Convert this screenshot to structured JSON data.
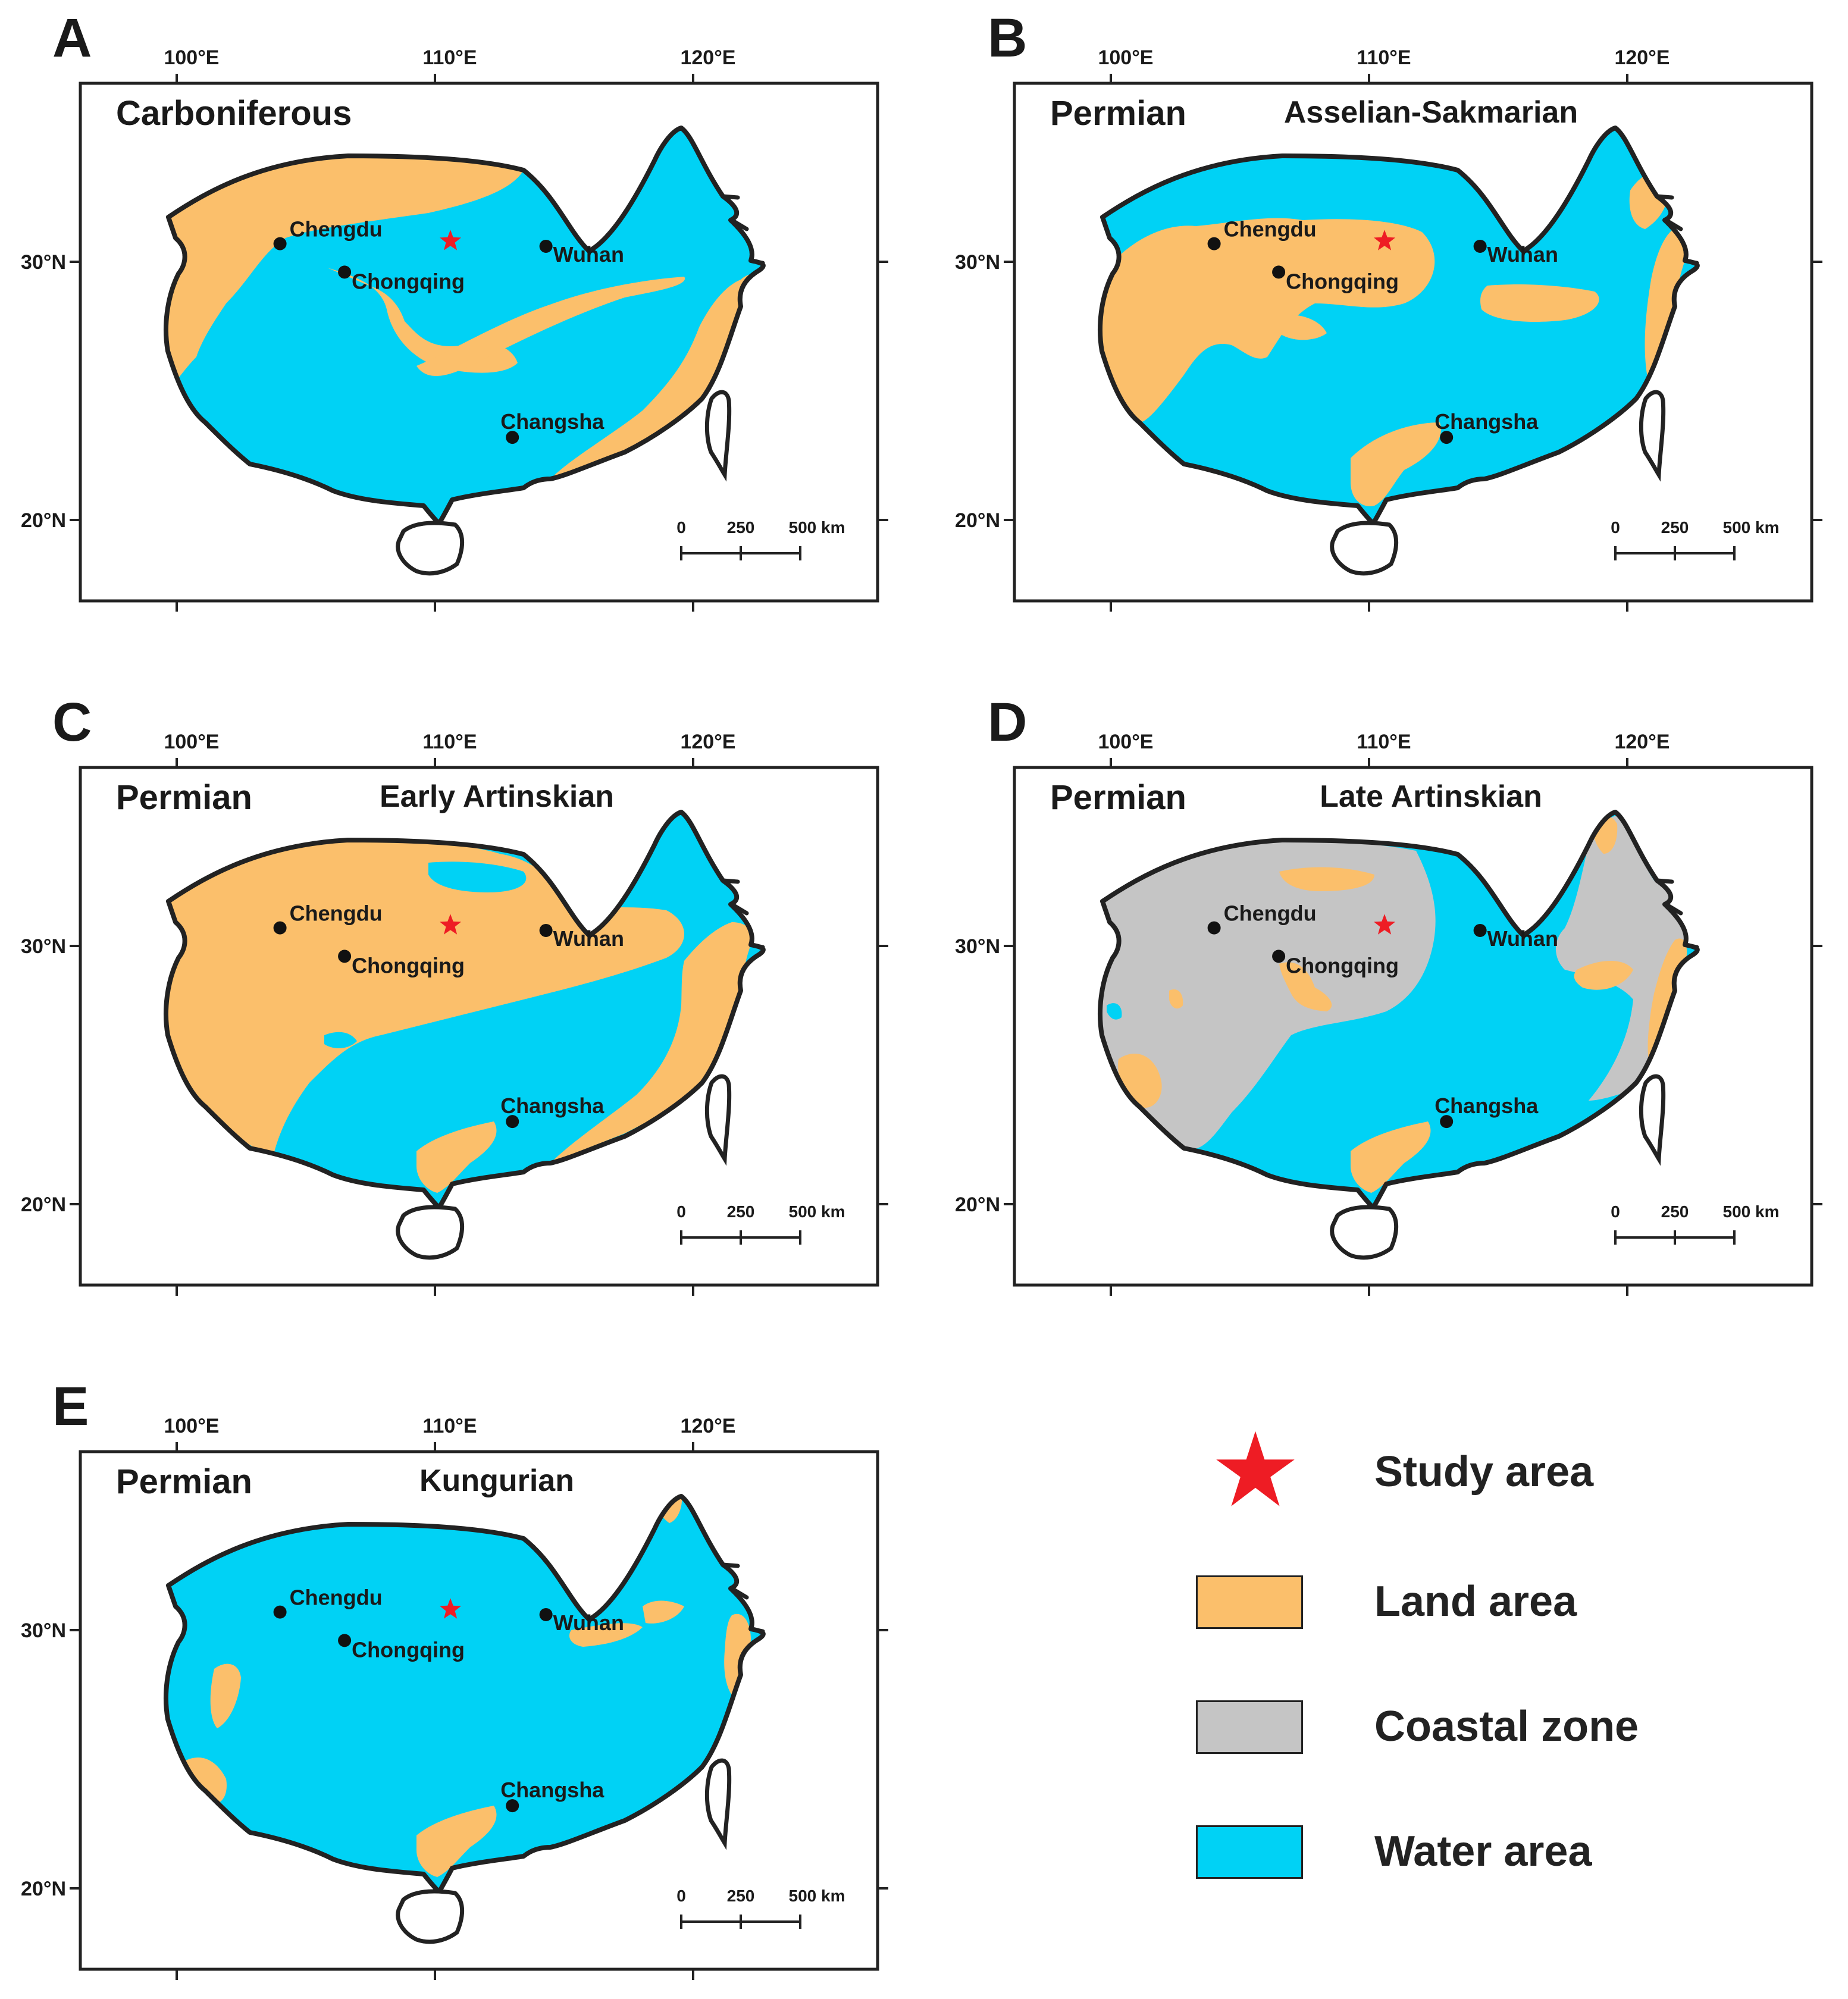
{
  "colors": {
    "land": "#fbbf6b",
    "water": "#00d2f5",
    "coastal": "#c5c5c5",
    "outline": "#222222",
    "star": "#ee1c24",
    "city": "#111111"
  },
  "axes": {
    "lon_labels": [
      "100°E",
      "110°E",
      "120°E"
    ],
    "lat_labels": [
      "30°N",
      "20°N"
    ],
    "scale": {
      "zero": "0",
      "mid": "250",
      "end": "500 km"
    }
  },
  "cities": [
    {
      "name": "Chengdu",
      "lon": 104.0,
      "lat": 30.7
    },
    {
      "name": "Chongqing",
      "lon": 106.5,
      "lat": 29.6
    },
    {
      "name": "Wuhan",
      "lon": 114.3,
      "lat": 30.6
    },
    {
      "name": "Changsha",
      "lon": 113.0,
      "lat": 23.2
    }
  ],
  "study_area": {
    "lon": 110.6,
    "lat": 30.8
  },
  "panels": [
    {
      "letter": "A",
      "period": "Carboniferous",
      "stage": "",
      "variant": "A"
    },
    {
      "letter": "B",
      "period": "Permian",
      "stage": "Asselian-Sakmarian",
      "variant": "B"
    },
    {
      "letter": "C",
      "period": "Permian",
      "stage": "Early Artinskian",
      "variant": "C"
    },
    {
      "letter": "D",
      "period": "Permian",
      "stage": "Late Artinskian",
      "variant": "D"
    },
    {
      "letter": "E",
      "period": "Permian",
      "stage": "Kungurian",
      "variant": "E"
    }
  ],
  "legend": [
    {
      "key": "star",
      "label": "Study area"
    },
    {
      "key": "land",
      "label": "Land area"
    },
    {
      "key": "coastal",
      "label": "Coastal zone"
    },
    {
      "key": "water",
      "label": "Water area"
    }
  ]
}
